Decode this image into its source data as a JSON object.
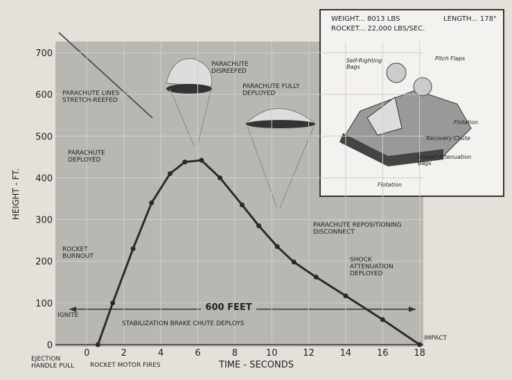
{
  "chart_data": {
    "type": "line",
    "xlabel": "TIME - SECONDS",
    "ylabel": "HEIGHT - FT.",
    "xlim": [
      -1.7,
      18.2
    ],
    "ylim": [
      0,
      720
    ],
    "xticks": [
      0,
      2,
      4,
      6,
      8,
      10,
      12,
      14,
      16,
      18
    ],
    "yticks": [
      0,
      100,
      200,
      300,
      400,
      500,
      600,
      700
    ],
    "grid": true,
    "series": [
      {
        "color": "#2a2a2a",
        "x": [
          0.6,
          1.4,
          2.5,
          3.5,
          4.5,
          5.3,
          6.2,
          7.2,
          8.4,
          9.3,
          10.3,
          11.2,
          12.4,
          14,
          16,
          18
        ],
        "values": [
          0,
          100,
          230,
          340,
          410,
          438,
          442,
          400,
          335,
          285,
          235,
          198,
          162,
          117,
          60,
          0
        ]
      }
    ],
    "annotations": [
      "PARACHUTE DISREEFED",
      "PARACHUTE FULLY DEPLOYED",
      "PARACHUTE LINES STRETCH-REEFED",
      "PARACHUTE DEPLOYED",
      "ROCKET BURNOUT",
      "IGNITE",
      "STABILIZATION BRAKE CHUTE DEPLOYS",
      "EJECTION HANDLE PULL",
      "ROCKET MOTOR FIRES",
      "IMPACT",
      "PARACHUTE REPOSITIONING DISCONNECT",
      "SHOCK ATTENUATION DEPLOYED",
      "600 FEET"
    ],
    "inset": {
      "specs": [
        "WEIGHT... 8013 LBS",
        "LENGTH... 178\"",
        "ROCKET... 22,000 LBS/SEC."
      ],
      "labels": [
        "Self-Righting Bags",
        "Pitch Flaps",
        "Flotation",
        "Recovery Chute",
        "Impact Attenuation Bags",
        "Flotation"
      ]
    }
  }
}
